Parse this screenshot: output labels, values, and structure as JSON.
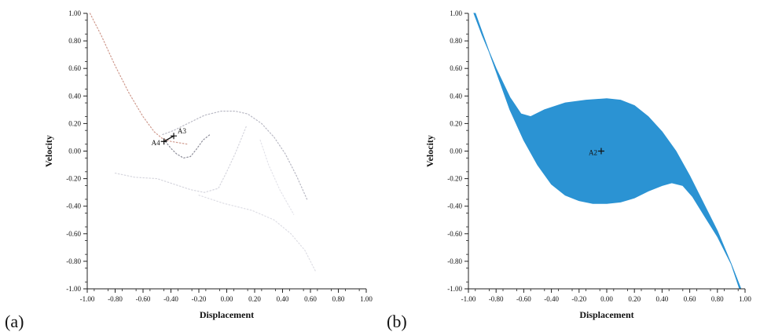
{
  "panel_labels": [
    "(a)",
    "(b)"
  ],
  "chart_data": [
    {
      "type": "scatter",
      "panel": "(a)",
      "xlabel": "Displacement",
      "ylabel": "Velocity",
      "xlim": [
        -1.0,
        1.0
      ],
      "ylim": [
        -1.0,
        1.0
      ],
      "xticks": [
        "-1.00",
        "-0.80",
        "-0.60",
        "-0.40",
        "-0.20",
        "0.00",
        "0.20",
        "0.40",
        "0.60",
        "0.80",
        "1.00"
      ],
      "yticks": [
        "1.00",
        "0.80",
        "0.60",
        "0.40",
        "0.20",
        "0.00",
        "-0.20",
        "-0.40",
        "-0.60",
        "-0.80",
        "-1.00"
      ],
      "grid": false,
      "curves": [
        {
          "color": "#cf9a8e",
          "points": [
            [
              -0.98,
              1.0
            ],
            [
              -0.9,
              0.84
            ],
            [
              -0.8,
              0.62
            ],
            [
              -0.7,
              0.42
            ],
            [
              -0.6,
              0.25
            ],
            [
              -0.52,
              0.14
            ],
            [
              -0.46,
              0.09
            ],
            [
              -0.4,
              0.07
            ],
            [
              -0.34,
              0.06
            ],
            [
              -0.28,
              0.05
            ]
          ]
        },
        {
          "color": "#b9b9c4",
          "points": [
            [
              -0.46,
              0.12
            ],
            [
              -0.38,
              0.15
            ],
            [
              -0.28,
              0.2
            ],
            [
              -0.16,
              0.26
            ],
            [
              -0.04,
              0.29
            ],
            [
              0.06,
              0.29
            ],
            [
              0.15,
              0.27
            ],
            [
              0.25,
              0.2
            ],
            [
              0.34,
              0.1
            ],
            [
              0.42,
              -0.02
            ],
            [
              0.5,
              -0.18
            ],
            [
              0.58,
              -0.36
            ]
          ]
        },
        {
          "color": "#8e8e9a",
          "points": [
            [
              -0.44,
              0.07
            ],
            [
              -0.4,
              0.02
            ],
            [
              -0.36,
              -0.02
            ],
            [
              -0.31,
              -0.05
            ],
            [
              -0.26,
              -0.04
            ],
            [
              -0.22,
              0.01
            ],
            [
              -0.17,
              0.08
            ],
            [
              -0.12,
              0.12
            ]
          ]
        },
        {
          "color": "#d6d6de",
          "points": [
            [
              -0.8,
              -0.16
            ],
            [
              -0.66,
              -0.19
            ],
            [
              -0.5,
              -0.2
            ],
            [
              -0.38,
              -0.24
            ],
            [
              -0.26,
              -0.28
            ],
            [
              -0.16,
              -0.3
            ],
            [
              -0.06,
              -0.27
            ],
            [
              0.0,
              -0.15
            ],
            [
              0.06,
              -0.02
            ],
            [
              0.1,
              0.08
            ],
            [
              0.14,
              0.18
            ]
          ]
        },
        {
          "color": "#dedee5",
          "points": [
            [
              -0.2,
              -0.32
            ],
            [
              -0.02,
              -0.38
            ],
            [
              0.18,
              -0.43
            ],
            [
              0.34,
              -0.5
            ],
            [
              0.46,
              -0.6
            ],
            [
              0.56,
              -0.72
            ],
            [
              0.64,
              -0.88
            ]
          ]
        },
        {
          "color": "#e3e3ea",
          "points": [
            [
              0.24,
              0.08
            ],
            [
              0.3,
              -0.1
            ],
            [
              0.38,
              -0.28
            ],
            [
              0.48,
              -0.46
            ]
          ]
        }
      ],
      "points": [
        {
          "label": "A4",
          "x": -0.45,
          "y": 0.07
        },
        {
          "label": "A3",
          "x": -0.38,
          "y": 0.11
        }
      ]
    },
    {
      "type": "area",
      "panel": "(b)",
      "xlabel": "Displacement",
      "ylabel": "Velocity",
      "xlim": [
        -1.0,
        1.0
      ],
      "ylim": [
        -1.0,
        1.0
      ],
      "xticks": [
        "-1.00",
        "-0.80",
        "-0.60",
        "-0.40",
        "-0.20",
        "0.00",
        "0.20",
        "0.40",
        "0.60",
        "0.80",
        "1.00"
      ],
      "yticks": [
        "1.00",
        "0.80",
        "0.60",
        "0.40",
        "0.20",
        "0.00",
        "-0.20",
        "-0.40",
        "-0.60",
        "-0.80",
        "-1.00"
      ],
      "grid": false,
      "fill_color": "#2b93d3",
      "upper": [
        [
          -0.96,
          1.0
        ],
        [
          -0.9,
          0.84
        ],
        [
          -0.8,
          0.6
        ],
        [
          -0.7,
          0.39
        ],
        [
          -0.62,
          0.27
        ],
        [
          -0.55,
          0.25
        ],
        [
          -0.45,
          0.3
        ],
        [
          -0.3,
          0.35
        ],
        [
          -0.15,
          0.37
        ],
        [
          0.0,
          0.38
        ],
        [
          0.1,
          0.37
        ],
        [
          0.2,
          0.33
        ],
        [
          0.3,
          0.25
        ],
        [
          0.4,
          0.14
        ],
        [
          0.5,
          0.0
        ],
        [
          0.6,
          -0.18
        ],
        [
          0.7,
          -0.38
        ],
        [
          0.8,
          -0.58
        ],
        [
          0.9,
          -0.82
        ],
        [
          0.97,
          -1.0
        ]
      ],
      "lower": [
        [
          -0.95,
          1.0
        ],
        [
          -0.9,
          0.86
        ],
        [
          -0.8,
          0.58
        ],
        [
          -0.7,
          0.3
        ],
        [
          -0.6,
          0.08
        ],
        [
          -0.5,
          -0.1
        ],
        [
          -0.4,
          -0.24
        ],
        [
          -0.3,
          -0.32
        ],
        [
          -0.2,
          -0.36
        ],
        [
          -0.1,
          -0.38
        ],
        [
          0.0,
          -0.38
        ],
        [
          0.1,
          -0.37
        ],
        [
          0.2,
          -0.34
        ],
        [
          0.3,
          -0.29
        ],
        [
          0.4,
          -0.25
        ],
        [
          0.47,
          -0.23
        ],
        [
          0.55,
          -0.25
        ],
        [
          0.62,
          -0.33
        ],
        [
          0.7,
          -0.46
        ],
        [
          0.8,
          -0.62
        ],
        [
          0.9,
          -0.82
        ],
        [
          0.96,
          -1.0
        ]
      ],
      "points": [
        {
          "label": "A2",
          "x": -0.04,
          "y": 0.0
        }
      ]
    }
  ]
}
